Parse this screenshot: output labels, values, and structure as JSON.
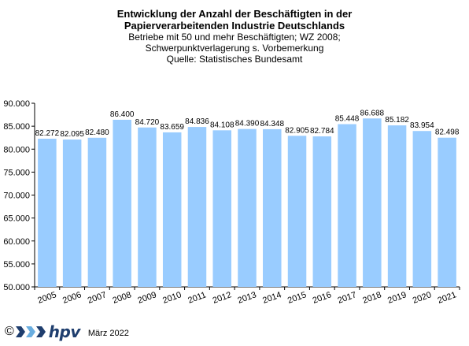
{
  "chart_data": {
    "type": "bar",
    "title": "Entwicklung der Anzahl der Beschäftigten  in der",
    "title_line2": "Papierverarbeitenden Industrie Deutschlands",
    "subtitle_lines": [
      "Betriebe  mit 50 und  mehr Beschäftigten;  WZ 2008;",
      "Schwerpunktverlagerung    s. Vorbemerkung",
      "Quelle:  Statistisches Bundesamt"
    ],
    "categories": [
      "2005",
      "2006",
      "2007",
      "2008",
      "2009",
      "2010",
      "2011",
      "2012",
      "2013",
      "2014",
      "2015",
      "2016",
      "2017",
      "2018",
      "2019",
      "2020",
      "2021"
    ],
    "values": [
      82272,
      82095,
      82480,
      86400,
      84720,
      83659,
      84836,
      84108,
      84390,
      84348,
      82905,
      82784,
      85448,
      86688,
      85182,
      83954,
      82498
    ],
    "value_labels": [
      "82.272",
      "82.095",
      "82.480",
      "86.400",
      "84.720",
      "83.659",
      "84.836",
      "84.108",
      "84.390",
      "84.348",
      "82.905",
      "82.784",
      "85.448",
      "86.688",
      "85.182",
      "83.954",
      "82.498"
    ],
    "yticks": [
      50000,
      55000,
      60000,
      65000,
      70000,
      75000,
      80000,
      85000,
      90000
    ],
    "ytick_labels": [
      "50.000",
      "55.000",
      "60.000",
      "65.000",
      "70.000",
      "75.000",
      "80.000",
      "85.000",
      "90.000"
    ],
    "ylim": [
      50000,
      90000
    ],
    "xlabel": "",
    "ylabel": "",
    "grid": false,
    "bar_color": "#99ccff"
  },
  "footer": {
    "copyright": "©",
    "logo_text": "hpv",
    "logo_icon": "hpv-chevron-logo",
    "date": "März 2022"
  }
}
